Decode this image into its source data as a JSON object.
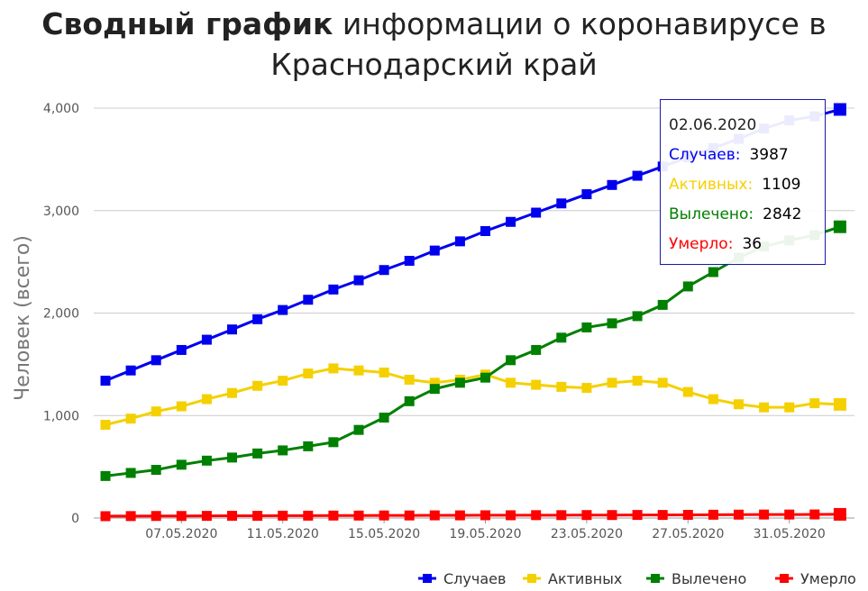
{
  "title": {
    "bold": "Сводный график",
    "rest": "информации о коронавирусе в",
    "line2": "Краснодарский край"
  },
  "chart_data": {
    "type": "line",
    "title": "Сводный график информации о коронавирусе в Краснодарский край",
    "ylabel": "Человек (всего)",
    "xlabel": "",
    "ylim": [
      0,
      4000
    ],
    "yticks": [
      0,
      1000,
      2000,
      3000,
      4000
    ],
    "ytick_labels": [
      "0",
      "1,000",
      "2,000",
      "3,000",
      "4,000"
    ],
    "x": [
      "04.05.2020",
      "05.05.2020",
      "06.05.2020",
      "07.05.2020",
      "08.05.2020",
      "09.05.2020",
      "10.05.2020",
      "11.05.2020",
      "12.05.2020",
      "13.05.2020",
      "14.05.2020",
      "15.05.2020",
      "16.05.2020",
      "17.05.2020",
      "18.05.2020",
      "19.05.2020",
      "20.05.2020",
      "21.05.2020",
      "22.05.2020",
      "23.05.2020",
      "24.05.2020",
      "25.05.2020",
      "26.05.2020",
      "27.05.2020",
      "28.05.2020",
      "29.05.2020",
      "30.05.2020",
      "31.05.2020",
      "01.06.2020",
      "02.06.2020"
    ],
    "xtick_labels": [
      "07.05.2020",
      "11.05.2020",
      "15.05.2020",
      "19.05.2020",
      "23.05.2020",
      "27.05.2020",
      "31.05.2020"
    ],
    "grid": true,
    "legend_position": "bottom-right",
    "series": [
      {
        "name": "Случаев",
        "color": "#0000ee",
        "values": [
          1340,
          1440,
          1540,
          1640,
          1740,
          1840,
          1940,
          2030,
          2130,
          2230,
          2320,
          2420,
          2510,
          2610,
          2700,
          2800,
          2890,
          2980,
          3070,
          3160,
          3250,
          3340,
          3430,
          3520,
          3610,
          3700,
          3800,
          3880,
          3920,
          3987
        ]
      },
      {
        "name": "Активных",
        "color": "#f5d000",
        "values": [
          910,
          970,
          1040,
          1090,
          1160,
          1220,
          1290,
          1340,
          1410,
          1460,
          1440,
          1420,
          1350,
          1320,
          1350,
          1400,
          1320,
          1300,
          1280,
          1270,
          1320,
          1340,
          1320,
          1230,
          1160,
          1110,
          1080,
          1080,
          1120,
          1109
        ]
      },
      {
        "name": "Вылечено",
        "color": "#008000",
        "values": [
          410,
          440,
          470,
          520,
          560,
          590,
          630,
          660,
          700,
          740,
          860,
          980,
          1140,
          1260,
          1320,
          1370,
          1540,
          1640,
          1760,
          1860,
          1900,
          1970,
          2080,
          2260,
          2400,
          2540,
          2650,
          2710,
          2760,
          2842
        ]
      },
      {
        "name": "Умерло",
        "color": "#ff0000",
        "values": [
          18,
          19,
          20,
          20,
          21,
          22,
          22,
          23,
          23,
          24,
          24,
          25,
          25,
          26,
          26,
          27,
          27,
          28,
          28,
          29,
          29,
          30,
          30,
          31,
          32,
          33,
          34,
          34,
          35,
          36
        ]
      }
    ],
    "tooltip": {
      "date": "02.06.2020",
      "rows": [
        {
          "label": "Случаев:",
          "value": "3987",
          "color": "#0000ee"
        },
        {
          "label": "Активных:",
          "value": "1109",
          "color": "#f5d000"
        },
        {
          "label": "Вылечено:",
          "value": "2842",
          "color": "#008000"
        },
        {
          "label": "Умерло:",
          "value": "36",
          "color": "#ff0000"
        }
      ]
    }
  }
}
